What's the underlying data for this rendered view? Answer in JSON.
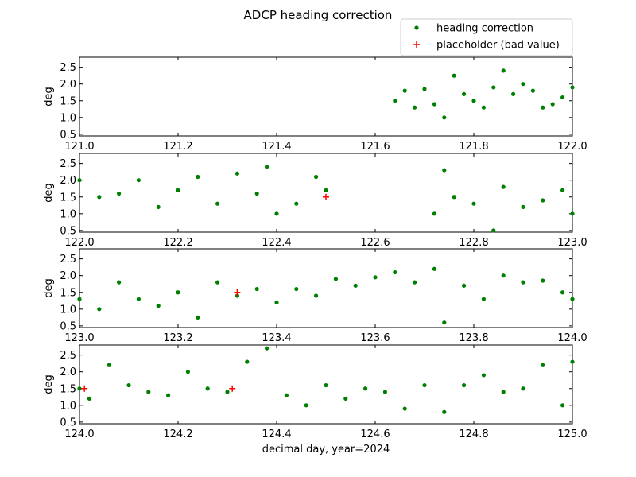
{
  "title": "ADCP heading correction",
  "xlabel": "decimal day, year=2024",
  "ylabel": "deg",
  "legend": {
    "placement": "top-right",
    "entries": [
      {
        "label": "heading correction",
        "marker": "dot",
        "color": "#008000"
      },
      {
        "label": "placeholder (bad value)",
        "marker": "plus",
        "color": "#ff0000"
      }
    ]
  },
  "chart_data": {
    "type": "scatter",
    "title": "ADCP heading correction",
    "xlabel": "decimal day, year=2024",
    "ylabel": "deg",
    "grid": false,
    "panels": [
      {
        "xlim": [
          121.0,
          122.0
        ],
        "ylim": [
          0.45,
          2.8
        ],
        "xticks": [
          "121.0",
          "121.2",
          "121.4",
          "121.6",
          "121.8",
          "122.0"
        ],
        "yticks": [
          "0.5",
          "1.0",
          "1.5",
          "2.0",
          "2.5"
        ],
        "series": [
          {
            "name": "heading correction",
            "x": [
              121.64,
              121.66,
              121.68,
              121.7,
              121.72,
              121.74,
              121.76,
              121.78,
              121.8,
              121.82,
              121.84,
              121.86,
              121.88,
              121.9,
              121.92,
              121.94,
              121.96,
              121.98,
              122.0
            ],
            "y": [
              1.5,
              1.8,
              1.3,
              1.85,
              1.4,
              1.0,
              2.25,
              1.7,
              1.5,
              1.3,
              1.9,
              2.4,
              1.7,
              2.0,
              1.8,
              1.3,
              1.4,
              1.6,
              1.9
            ]
          },
          {
            "name": "placeholder (bad value)",
            "x": [],
            "y": []
          }
        ]
      },
      {
        "xlim": [
          122.0,
          123.0
        ],
        "ylim": [
          0.45,
          2.8
        ],
        "xticks": [
          "122.0",
          "122.2",
          "122.4",
          "122.6",
          "122.8",
          "123.0"
        ],
        "yticks": [
          "0.5",
          "1.0",
          "1.5",
          "2.0",
          "2.5"
        ],
        "series": [
          {
            "name": "heading correction",
            "x": [
              122.0,
              122.04,
              122.08,
              122.12,
              122.16,
              122.2,
              122.24,
              122.28,
              122.32,
              122.36,
              122.38,
              122.4,
              122.44,
              122.48,
              122.5,
              122.72,
              122.74,
              122.76,
              122.8,
              122.84,
              122.86,
              122.9,
              122.94,
              122.98,
              123.0
            ],
            "y": [
              2.0,
              1.5,
              1.6,
              2.0,
              1.2,
              1.7,
              2.1,
              1.3,
              2.2,
              1.6,
              2.4,
              1.0,
              1.3,
              2.1,
              1.7,
              1.0,
              2.3,
              1.5,
              1.3,
              0.5,
              1.8,
              1.2,
              1.4,
              1.7,
              1.0
            ]
          },
          {
            "name": "placeholder (bad value)",
            "x": [
              122.5
            ],
            "y": [
              1.5
            ]
          }
        ]
      },
      {
        "xlim": [
          123.0,
          124.0
        ],
        "ylim": [
          0.45,
          2.8
        ],
        "xticks": [
          "123.0",
          "123.2",
          "123.4",
          "123.6",
          "123.8",
          "124.0"
        ],
        "yticks": [
          "0.5",
          "1.0",
          "1.5",
          "2.0",
          "2.5"
        ],
        "series": [
          {
            "name": "heading correction",
            "x": [
              123.0,
              123.04,
              123.08,
              123.12,
              123.16,
              123.2,
              123.24,
              123.28,
              123.32,
              123.36,
              123.4,
              123.44,
              123.48,
              123.52,
              123.56,
              123.6,
              123.64,
              123.68,
              123.72,
              123.74,
              123.78,
              123.82,
              123.86,
              123.9,
              123.94,
              123.98,
              124.0
            ],
            "y": [
              1.3,
              1.0,
              1.8,
              1.3,
              1.1,
              1.5,
              0.75,
              1.8,
              1.4,
              1.6,
              1.2,
              1.6,
              1.4,
              1.9,
              1.7,
              1.95,
              2.1,
              1.8,
              2.2,
              0.6,
              1.7,
              1.3,
              2.0,
              1.8,
              1.85,
              1.5,
              1.3
            ]
          },
          {
            "name": "placeholder (bad value)",
            "x": [
              123.32
            ],
            "y": [
              1.5
            ]
          }
        ]
      },
      {
        "xlim": [
          124.0,
          125.0
        ],
        "ylim": [
          0.45,
          2.8
        ],
        "xticks": [
          "124.0",
          "124.2",
          "124.4",
          "124.6",
          "124.8",
          "125.0"
        ],
        "yticks": [
          "0.5",
          "1.0",
          "1.5",
          "2.0",
          "2.5"
        ],
        "series": [
          {
            "name": "heading correction",
            "x": [
              124.0,
              124.02,
              124.06,
              124.1,
              124.14,
              124.18,
              124.22,
              124.26,
              124.3,
              124.34,
              124.38,
              124.42,
              124.46,
              124.5,
              124.54,
              124.58,
              124.62,
              124.66,
              124.7,
              124.74,
              124.78,
              124.82,
              124.86,
              124.9,
              124.94,
              124.98,
              125.0
            ],
            "y": [
              1.5,
              1.2,
              2.2,
              1.6,
              1.4,
              1.3,
              2.0,
              1.5,
              1.4,
              2.3,
              2.7,
              1.3,
              1.0,
              1.6,
              1.2,
              1.5,
              1.4,
              0.9,
              1.6,
              0.8,
              1.6,
              1.9,
              1.4,
              1.5,
              2.2,
              1.0,
              2.3
            ]
          },
          {
            "name": "placeholder (bad value)",
            "x": [
              124.01,
              124.31
            ],
            "y": [
              1.5,
              1.5
            ]
          }
        ]
      }
    ]
  }
}
